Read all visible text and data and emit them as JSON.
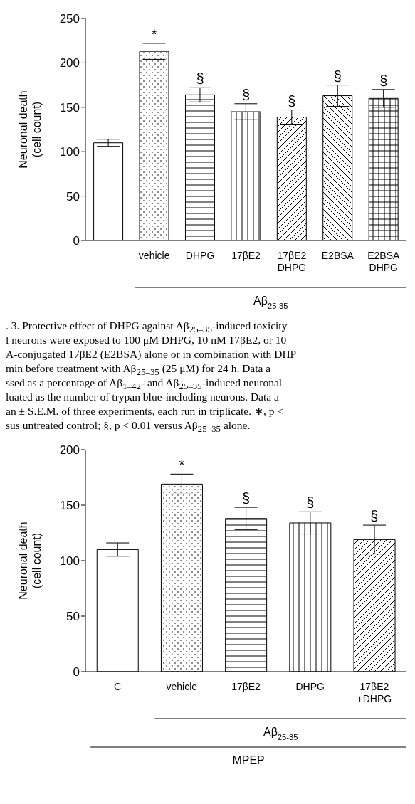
{
  "chart_data": [
    {
      "type": "bar",
      "ylabel": "Neuronal death\n(cell count)",
      "categories": [
        null,
        "vehicle",
        "DHPG",
        "17βE2",
        "17βE2\nDHPG",
        "E2BSA",
        "E2BSA\nDHPG"
      ],
      "values": [
        110,
        213,
        164,
        145,
        139,
        163,
        160
      ],
      "errors": [
        4,
        9,
        8,
        9,
        8,
        12,
        10
      ],
      "color": "#000000",
      "ylim": [
        0,
        250
      ],
      "yticks": [
        0,
        50,
        100,
        150,
        200,
        250
      ],
      "grid": false,
      "legend": false,
      "annotations": [
        {
          "text": "*",
          "x": "vehicle",
          "y": 222
        },
        {
          "text": "§",
          "x": "DHPG",
          "y": 172
        },
        {
          "text": "§",
          "x": "17βE2",
          "y": 154
        },
        {
          "text": "§",
          "x": "17βE2\nDHPG",
          "y": 147
        },
        {
          "text": "§",
          "x": "E2BSA",
          "y": 175
        },
        {
          "text": "§",
          "x": "E2BSA\nDHPG",
          "y": 170
        },
        "Aβ$_{25-35}$"
      ]
    },
    {
      "type": "other",
      "annotations": [
        ". 3. Protective effect of DHPG against Aβ$_{25–35}$-induced toxicity",
        "l neurons were exposed to 100 μM DHPG, 10 nM 17βE2, or 10",
        "A-conjugated 17βE2 (E2BSA) alone or in combination with DHP",
        "min before treatment with Aβ$_{25–35}$ (25 μM) for 24 h. Data a",
        "ssed as a percentage of Aβ$_{1–42}$- and Aβ$_{25–35}$-induced neuronal",
        "luated as the number of trypan blue-including neurons. Data a",
        "an ± S.E.M. of three experiments, each run in triplicate. ∗, p <",
        "sus untreated control; §, p < 0.01 versus Aβ$_{25–35}$ alone."
      ]
    },
    {
      "type": "bar",
      "ylabel": "Neuronal death\n(cell count)",
      "categories": [
        "C",
        "vehicle",
        "17βE2",
        "DHPG",
        "17βE2\n+DHPG"
      ],
      "values": [
        110,
        169,
        138,
        134,
        119
      ],
      "errors": [
        6,
        9,
        10,
        10,
        13
      ],
      "color": "#000000",
      "ylim": [
        0,
        200
      ],
      "yticks": [
        0,
        50,
        100,
        150,
        200
      ],
      "grid": false,
      "legend": false,
      "annotations": [
        {
          "text": "*",
          "x": "vehicle",
          "y": 178
        },
        {
          "text": "§",
          "x": "17βE2",
          "y": 148
        },
        {
          "text": "§",
          "x": "DHPG",
          "y": 144
        },
        {
          "text": "§",
          "x": "17βE2\n+DHPG",
          "y": 132
        },
        "Aβ$_{25-35}$",
        "MPEP"
      ]
    }
  ]
}
